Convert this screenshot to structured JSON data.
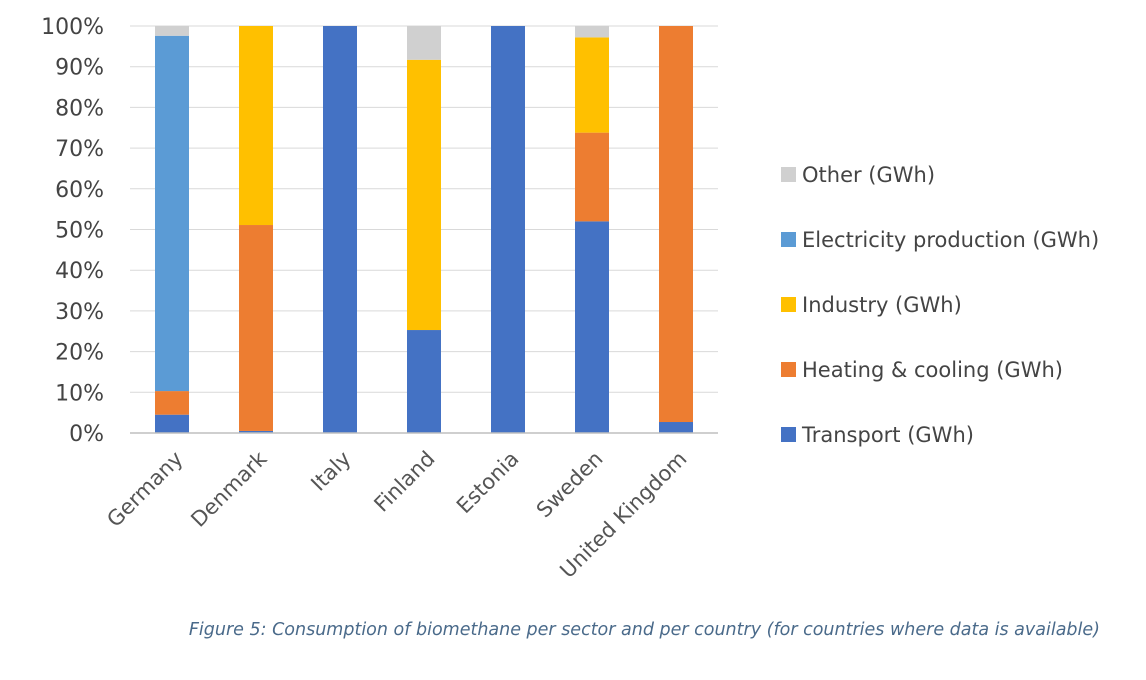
{
  "chart_data": {
    "type": "bar",
    "stacked": true,
    "percent": true,
    "categories": [
      "Germany",
      "Denmark",
      "Italy",
      "Finland",
      "Estonia",
      "Sweden",
      "United Kingdom"
    ],
    "series": [
      {
        "name": "Transport (GWh)",
        "color": "#4472C4",
        "values": [
          4.5,
          0.5,
          100,
          25.3,
          100,
          52,
          2.7
        ]
      },
      {
        "name": "Heating & cooling (GWh)",
        "color": "#ED7D31",
        "values": [
          5.8,
          50.6,
          0,
          0,
          0,
          21.8,
          97.3
        ]
      },
      {
        "name": "Industry (GWh)",
        "color": "#FFC000",
        "values": [
          0,
          48.9,
          0,
          66.4,
          0,
          23.4,
          0
        ]
      },
      {
        "name": "Electricity production (GWh)",
        "color": "#5B9BD5",
        "values": [
          87.3,
          0,
          0,
          0,
          0,
          0,
          0
        ]
      },
      {
        "name": "Other (GWh)",
        "color": "#D0D0D0",
        "values": [
          2.4,
          0,
          0,
          8.3,
          0,
          2.8,
          0
        ]
      }
    ],
    "legend_order": [
      "Other (GWh)",
      "Electricity production (GWh)",
      "Industry (GWh)",
      "Heating & cooling (GWh)",
      "Transport (GWh)"
    ],
    "yticks": [
      "0%",
      "10%",
      "20%",
      "30%",
      "40%",
      "50%",
      "60%",
      "70%",
      "80%",
      "90%",
      "100%"
    ],
    "ylim": [
      0,
      100
    ],
    "grid": true,
    "legend_position": "right",
    "caption": "Figure 5: Consumption of biomethane per sector and per country (for countries where data is available)"
  }
}
